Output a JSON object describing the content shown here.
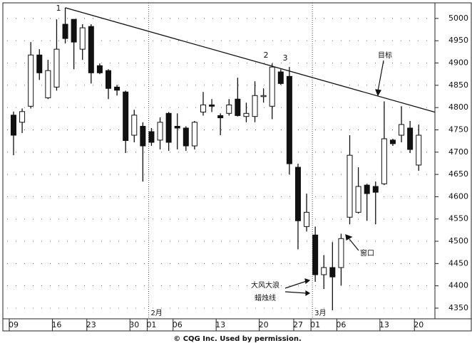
{
  "chart_data": {
    "type": "candlestick",
    "categories": [
      "09",
      null,
      null,
      null,
      null,
      "16",
      null,
      null,
      null,
      "23",
      null,
      null,
      null,
      null,
      "30",
      null,
      "01",
      null,
      null,
      "06",
      null,
      null,
      null,
      null,
      "13",
      null,
      null,
      null,
      null,
      "20",
      null,
      null,
      null,
      "27",
      null,
      "01",
      null,
      null,
      "06",
      null,
      null,
      null,
      null,
      "13",
      null,
      null,
      null,
      "20"
    ],
    "open": [
      4783,
      4767,
      4803,
      4918,
      4822,
      4846,
      4987,
      4998,
      4931,
      4982,
      4894,
      4883,
      4846,
      4835,
      4738,
      4758,
      4746,
      4727,
      4787,
      4758,
      4754,
      4714,
      4790,
      4806,
      4782,
      4787,
      4819,
      4780,
      4780,
      4827,
      4803,
      4880,
      4870,
      4666,
      4533,
      4514,
      4425,
      4441,
      4441,
      4554,
      4565,
      4626,
      4623,
      4629,
      4727,
      4738,
      4754,
      4671
    ],
    "high": [
      4791,
      4798,
      4947,
      4931,
      4907,
      4998,
      5024,
      4998,
      4987,
      4987,
      4899,
      4886,
      4851,
      4838,
      4795,
      4767,
      4754,
      4778,
      4790,
      4787,
      4758,
      4770,
      4835,
      4819,
      4787,
      4819,
      4867,
      4811,
      4859,
      4843,
      4899,
      4886,
      4891,
      4674,
      4607,
      4533,
      4469,
      4498,
      4517,
      4738,
      4666,
      4629,
      4634,
      4814,
      4730,
      4803,
      4770,
      4762
    ],
    "low": [
      4693,
      4743,
      4798,
      4862,
      4819,
      4838,
      4944,
      4886,
      4907,
      4854,
      4875,
      4819,
      4827,
      4698,
      4722,
      4634,
      4714,
      4706,
      4703,
      4706,
      4703,
      4706,
      4782,
      4790,
      4738,
      4782,
      4780,
      4767,
      4767,
      4811,
      4774,
      4851,
      4650,
      4482,
      4522,
      4409,
      4393,
      4345,
      4401,
      4538,
      4562,
      4546,
      4538,
      4626,
      4714,
      4722,
      4698,
      4658
    ],
    "close": [
      4738,
      4791,
      4918,
      4878,
      4883,
      4931,
      4955,
      4947,
      4979,
      4878,
      4878,
      4843,
      4839,
      4726,
      4783,
      4714,
      4722,
      4767,
      4722,
      4754,
      4714,
      4767,
      4806,
      4803,
      4777,
      4806,
      4782,
      4787,
      4827,
      4827,
      4891,
      4854,
      4674,
      4546,
      4565,
      4425,
      4441,
      4420,
      4506,
      4693,
      4623,
      4607,
      4610,
      4730,
      4719,
      4762,
      4706,
      4738
    ],
    "ylim": [
      4326,
      5035
    ],
    "yticks": [
      4350,
      4400,
      4450,
      4500,
      4550,
      4600,
      4650,
      4700,
      4750,
      4800,
      4850,
      4900,
      4950,
      5000
    ],
    "grid": true,
    "trendline": {
      "from": [
        6,
        5024
      ],
      "to": [
        47,
        4800
      ]
    },
    "month_markers": [
      {
        "index": 16,
        "label": "2月"
      },
      {
        "index": 35,
        "label": "3月"
      }
    ],
    "annotations": [
      "1",
      "2",
      "3",
      "目标",
      "窗口",
      "大风大浪",
      "蜡烛线"
    ],
    "footer": "© CQG Inc. Used by permission."
  }
}
